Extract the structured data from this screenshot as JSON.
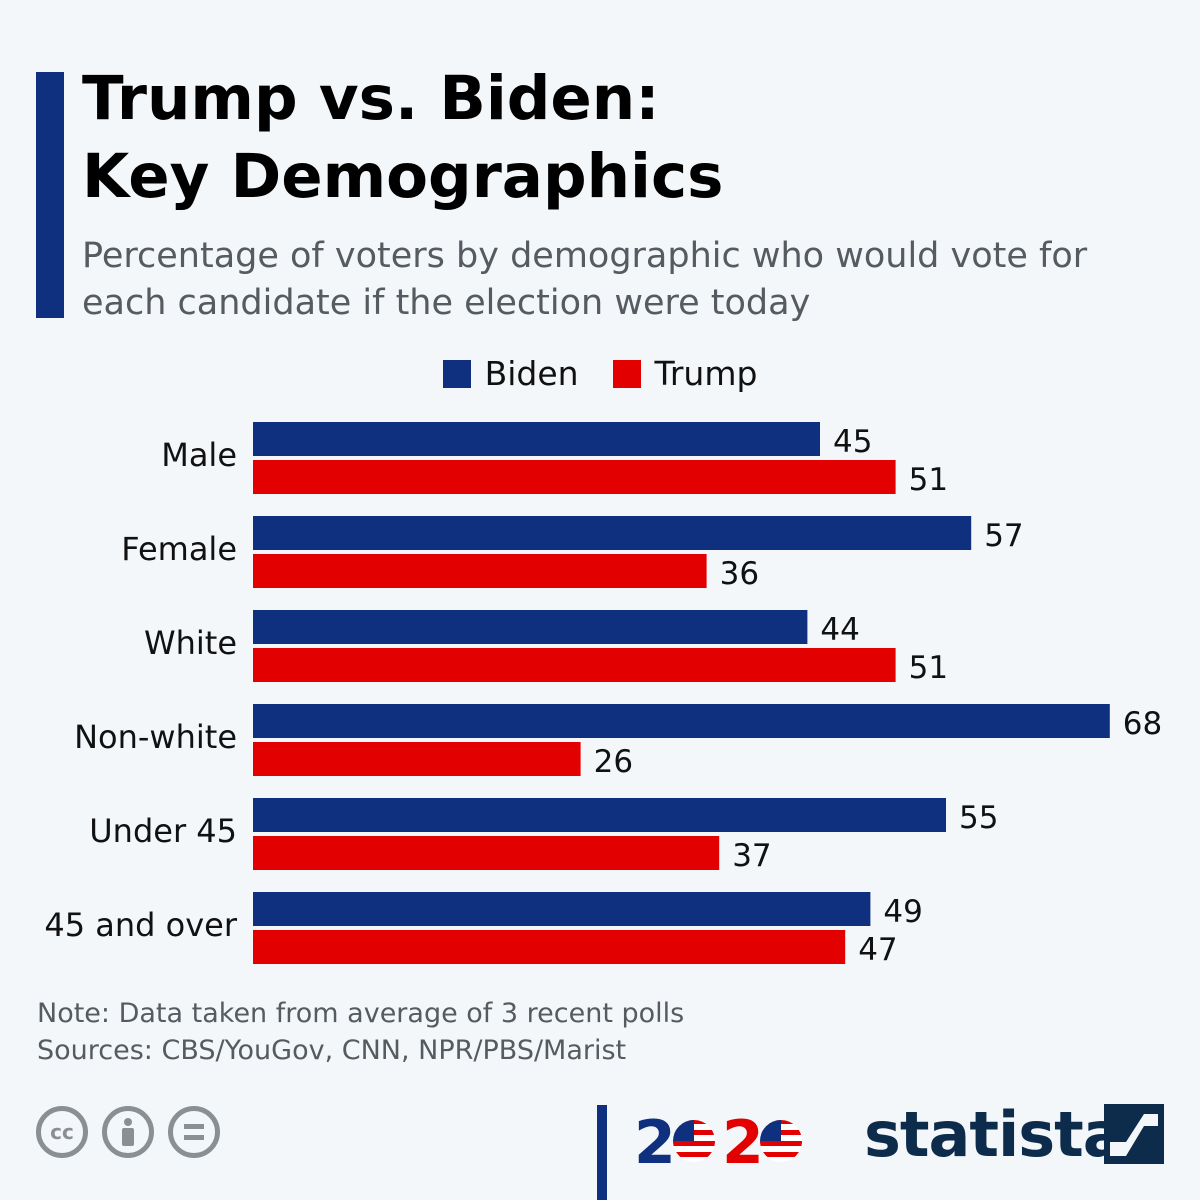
{
  "title": "Trump vs. Biden:\nKey Demographics",
  "subtitle": "Percentage of voters by demographic who would vote for each candidate if the election were today",
  "legend": {
    "biden": "Biden",
    "trump": "Trump"
  },
  "colors": {
    "biden": "#0f2f7f",
    "trump": "#e30000",
    "accent": "#0f2f7f",
    "background": "#f3f7fa"
  },
  "chart_data": {
    "type": "bar",
    "orientation": "horizontal",
    "categories": [
      "Male",
      "Female",
      "White",
      "Non-white",
      "Under 45",
      "45 and over"
    ],
    "series": [
      {
        "name": "Biden",
        "values": [
          45,
          57,
          44,
          68,
          55,
          49
        ]
      },
      {
        "name": "Trump",
        "values": [
          51,
          36,
          51,
          26,
          37,
          47
        ]
      }
    ],
    "title": "Trump vs. Biden: Key Demographics",
    "xlabel": "",
    "ylabel": "",
    "xlim": [
      0,
      70
    ],
    "grid": false,
    "legend": "top-center"
  },
  "note": {
    "line1": "Note: Data taken from average of 3 recent polls",
    "line2": "Sources: CBS/YouGov, CNN, NPR/PBS/Marist"
  },
  "footer": {
    "license_icons": [
      "cc-icon",
      "attribution-icon",
      "no-derivatives-icon"
    ],
    "cc_text": "cc",
    "logo_2020": {
      "digit2": "2",
      "digit0": "0"
    },
    "brand": "statista"
  }
}
